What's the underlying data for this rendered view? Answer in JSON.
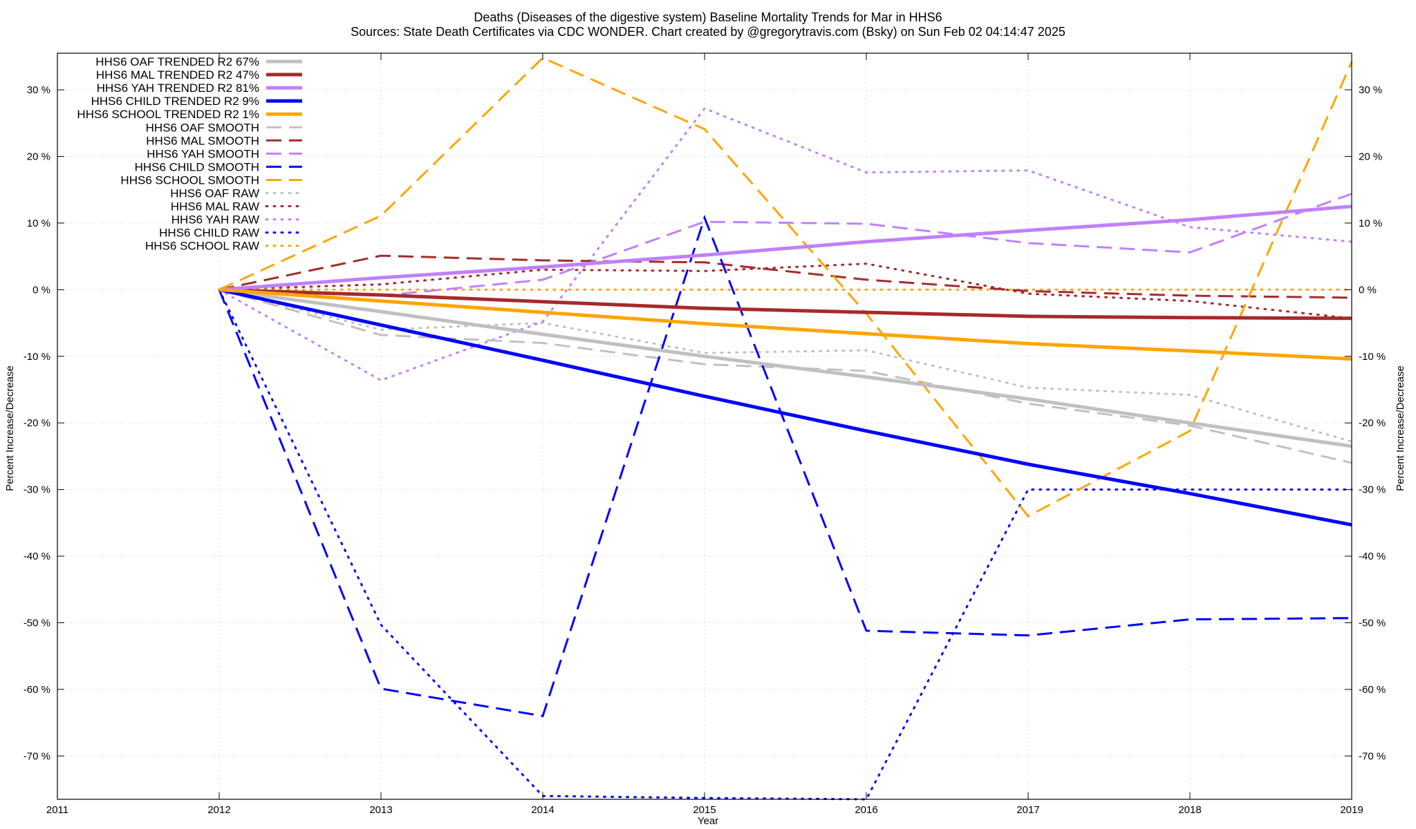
{
  "title_line1": "Deaths (Diseases of the digestive system)  Baseline Mortality Trends for Mar in HHS6",
  "title_line2": "Sources: State Death Certificates via CDC WONDER.              Chart created by @gregorytravis.com (Bsky) on Sun Feb 02 04:14:47 2025",
  "chart_data": {
    "type": "line",
    "xlabel": "Year",
    "ylabel": "Percent Increase/Decrease",
    "ylabel_right": "Percent Increase/Decrease",
    "xlim": [
      2011,
      2019
    ],
    "ylim": [
      -76.5,
      35.5
    ],
    "x_ticks": [
      2011,
      2012,
      2013,
      2014,
      2015,
      2016,
      2017,
      2018,
      2019
    ],
    "x_tick_labels": [
      "2011",
      "2012",
      "2013",
      "2014",
      "2015",
      "2016",
      "2017",
      "2018",
      "2019"
    ],
    "y_ticks": [
      30,
      20,
      10,
      0,
      -10,
      -20,
      -30,
      -40,
      -50,
      -60,
      -70
    ],
    "y_tick_labels": [
      "30 %",
      "20 %",
      "10 %",
      "0 %",
      "-10 %",
      "-20 %",
      "-30 %",
      "-40 %",
      "-50 %",
      "-60 %",
      "-70 %"
    ],
    "grid": true,
    "legend_position": "top-left",
    "x": [
      2012,
      2013,
      2014,
      2015,
      2016,
      2017,
      2018,
      2019
    ],
    "series": [
      {
        "name": "HHS6 OAF TRENDED R2  67%",
        "color": "#c0c0c0",
        "style": "solid",
        "width": 5,
        "values": [
          0,
          -3.3,
          -6.7,
          -10.0,
          -13.1,
          -16.4,
          -20.0,
          -23.5
        ]
      },
      {
        "name": "HHS6 MAL TRENDED R2  47%",
        "color": "#a52a2a",
        "style": "solid",
        "width": 5,
        "values": [
          0,
          -0.8,
          -1.8,
          -2.8,
          -3.4,
          -4.0,
          -4.2,
          -4.3
        ]
      },
      {
        "name": "HHS6 YAH TRENDED R2  81%",
        "color": "#c080ff",
        "style": "solid",
        "width": 5,
        "values": [
          0,
          1.8,
          3.4,
          5.2,
          7.2,
          8.9,
          10.5,
          12.5
        ]
      },
      {
        "name": "HHS6 CHILD TRENDED R2   9%",
        "color": "#0000ff",
        "style": "solid",
        "width": 5,
        "values": [
          0,
          -5.3,
          -10.6,
          -16.0,
          -21.2,
          -26.2,
          -30.6,
          -35.3
        ]
      },
      {
        "name": "HHS6 SCHOOL TRENDED R2   1%",
        "color": "#ffa500",
        "style": "solid",
        "width": 5,
        "values": [
          0,
          -1.7,
          -3.4,
          -5.1,
          -6.6,
          -8.1,
          -9.2,
          -10.4
        ]
      },
      {
        "name": "HHS6 OAF SMOOTH",
        "color": "#c0c0c0",
        "style": "dashed",
        "width": 3,
        "values": [
          0,
          -6.8,
          -8.0,
          -11.2,
          -12.2,
          -17.1,
          -20.4,
          -26.0
        ]
      },
      {
        "name": "HHS6 MAL SMOOTH",
        "color": "#a52a2a",
        "style": "dashed",
        "width": 3,
        "values": [
          0,
          5.1,
          4.4,
          4.1,
          1.5,
          -0.2,
          -0.9,
          -1.2
        ]
      },
      {
        "name": "HHS6 YAH SMOOTH",
        "color": "#c080ff",
        "style": "dashed",
        "width": 3,
        "values": [
          0,
          -0.9,
          1.5,
          10.2,
          9.9,
          7.0,
          5.6,
          14.4
        ]
      },
      {
        "name": "HHS6 CHILD SMOOTH",
        "color": "#0000ff",
        "style": "dashed",
        "width": 3,
        "values": [
          0,
          -59.9,
          -64.0,
          10.8,
          -51.2,
          -51.9,
          -49.5,
          -49.3
        ]
      },
      {
        "name": "HHS6 SCHOOL SMOOTH",
        "color": "#ffa500",
        "style": "dashed",
        "width": 3,
        "values": [
          0,
          11.1,
          34.8,
          24.1,
          -3.6,
          -34.0,
          -21.2,
          34.2
        ]
      },
      {
        "name": "HHS6 OAF RAW",
        "color": "#c0c0c0",
        "style": "dotted",
        "width": 3,
        "values": [
          0,
          -6.0,
          -5.0,
          -9.5,
          -9.1,
          -14.7,
          -15.8,
          -22.8
        ]
      },
      {
        "name": "HHS6 MAL RAW",
        "color": "#a52a2a",
        "style": "dotted",
        "width": 3,
        "values": [
          0,
          0.8,
          3.0,
          2.8,
          3.9,
          -0.6,
          -1.7,
          -4.3
        ]
      },
      {
        "name": "HHS6 YAH RAW",
        "color": "#c080ff",
        "style": "dotted",
        "width": 3,
        "values": [
          0,
          -13.6,
          -4.8,
          27.2,
          17.6,
          17.9,
          9.4,
          7.2
        ]
      },
      {
        "name": "HHS6 CHILD RAW",
        "color": "#0000ff",
        "style": "dotted",
        "width": 3,
        "values": [
          0,
          -50.3,
          -76.0,
          -76.3,
          -76.5,
          -30.0,
          -30.0,
          -30.0
        ]
      },
      {
        "name": "HHS6 SCHOOL RAW",
        "color": "#ffa500",
        "style": "dotted",
        "width": 3,
        "values": [
          0,
          0,
          0,
          0,
          0,
          0,
          0,
          0
        ]
      }
    ]
  }
}
